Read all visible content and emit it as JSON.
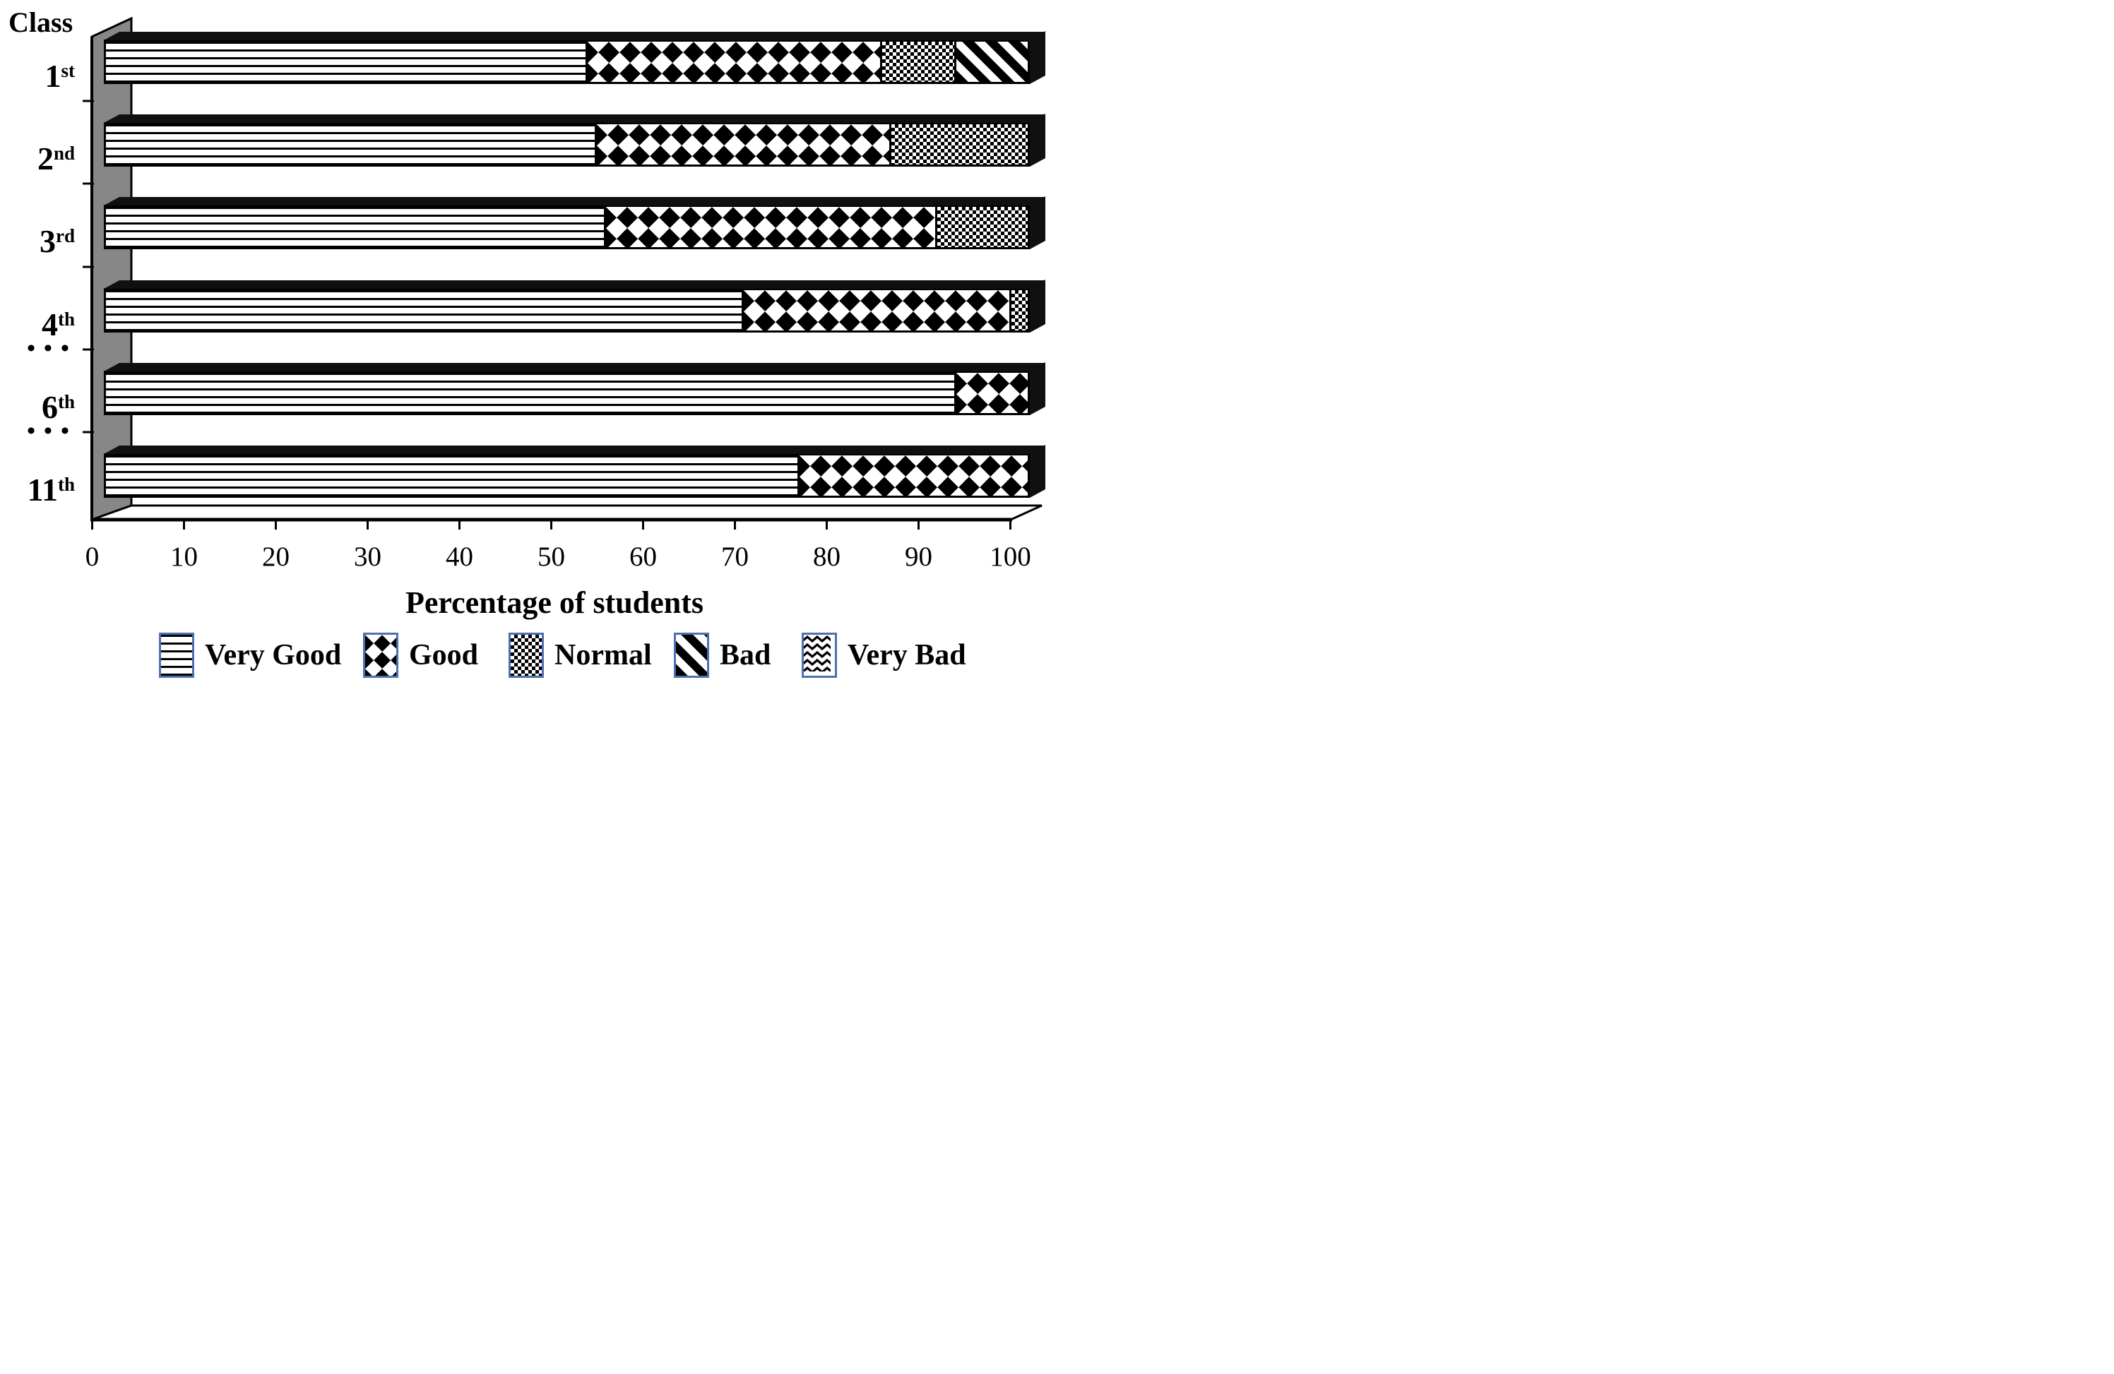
{
  "y_axis_title": "Class",
  "x_axis_title": "Percentage of students",
  "gap_marker": "•••",
  "x_ticks": [
    0,
    10,
    20,
    30,
    40,
    50,
    60,
    70,
    80,
    90,
    100
  ],
  "legend": [
    {
      "label": "Very Good",
      "pattern": "very-good",
      "texture": "horizontal-lines"
    },
    {
      "label": "Good",
      "pattern": "good",
      "texture": "diamond-checker"
    },
    {
      "label": "Normal",
      "pattern": "normal",
      "texture": "dense-checker"
    },
    {
      "label": "Bad",
      "pattern": "bad",
      "texture": "diagonal-stripes"
    },
    {
      "label": "Very Bad",
      "pattern": "very-bad",
      "texture": "zigzag-waves"
    }
  ],
  "colors": {
    "ink": "#000000",
    "background": "#ffffff",
    "wall_gray": "#878787",
    "legend_swatch_border": "#4f6fb0",
    "bar_side_face": "#101010"
  },
  "chart_data": {
    "type": "bar",
    "orientation": "horizontal",
    "stacked": true,
    "effect": "3d",
    "title": "",
    "xlabel": "Percentage of students",
    "ylabel": "Class",
    "xlim": [
      0,
      100
    ],
    "x_tick_step": 10,
    "grid": false,
    "legend_position": "bottom",
    "categories": [
      {
        "label": "1st",
        "base": "1",
        "sup": "st"
      },
      {
        "label": "2nd",
        "base": "2",
        "sup": "nd"
      },
      {
        "label": "3rd",
        "base": "3",
        "sup": "rd"
      },
      {
        "label": "4th",
        "base": "4",
        "sup": "th"
      },
      {
        "label": "6th",
        "base": "6",
        "sup": "th"
      },
      {
        "label": "11th",
        "base": "11",
        "sup": "th"
      }
    ],
    "axis_break_after": [
      "4th",
      "6th"
    ],
    "series": [
      {
        "name": "Very Good",
        "values": [
          52,
          53,
          54,
          69,
          92,
          75
        ]
      },
      {
        "name": "Good",
        "values": [
          32,
          32,
          36,
          29,
          8,
          25
        ]
      },
      {
        "name": "Normal",
        "values": [
          8,
          15,
          10,
          2,
          0,
          0
        ]
      },
      {
        "name": "Bad",
        "values": [
          8,
          0,
          0,
          0,
          0,
          0
        ]
      },
      {
        "name": "Very Bad",
        "values": [
          0,
          0,
          0,
          0,
          0,
          0
        ]
      }
    ]
  }
}
